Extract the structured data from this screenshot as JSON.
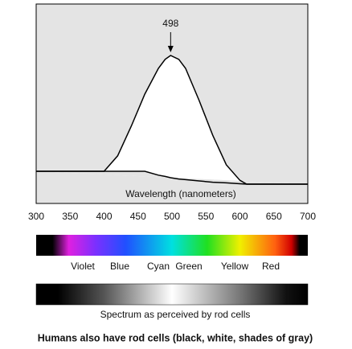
{
  "chart_data": {
    "type": "line",
    "x": [
      300,
      350,
      400,
      420,
      440,
      460,
      480,
      490,
      498,
      510,
      520,
      540,
      560,
      580,
      600,
      610,
      650,
      700
    ],
    "series": [
      {
        "color": "#000000",
        "values": [
          10,
          10,
          10,
          22,
          45,
          70,
          90,
          97,
          100,
          97,
          90,
          65,
          38,
          15,
          3,
          0,
          0,
          0
        ]
      },
      {
        "color": "#000000",
        "values": [
          10,
          10,
          10,
          10,
          10,
          10,
          7,
          6,
          5,
          4,
          3.5,
          2.5,
          1.5,
          1,
          0.3,
          0,
          0,
          0
        ]
      }
    ],
    "xlim": [
      300,
      700
    ],
    "xticks": [
      300,
      350,
      400,
      450,
      500,
      550,
      600,
      650,
      700
    ],
    "ylim": [
      -15,
      140
    ],
    "xlabel": "Wavelength (nanometers)",
    "annotation": {
      "label": "498",
      "x": 498
    }
  },
  "spectrum": {
    "labels": [
      "Violet",
      "Blue",
      "Cyan",
      "Green",
      "Yellow",
      "Red"
    ],
    "caption": "Spectrum as perceived by rod cells"
  },
  "caption": "Humans also have rod cells (black, white, shades of gray)"
}
